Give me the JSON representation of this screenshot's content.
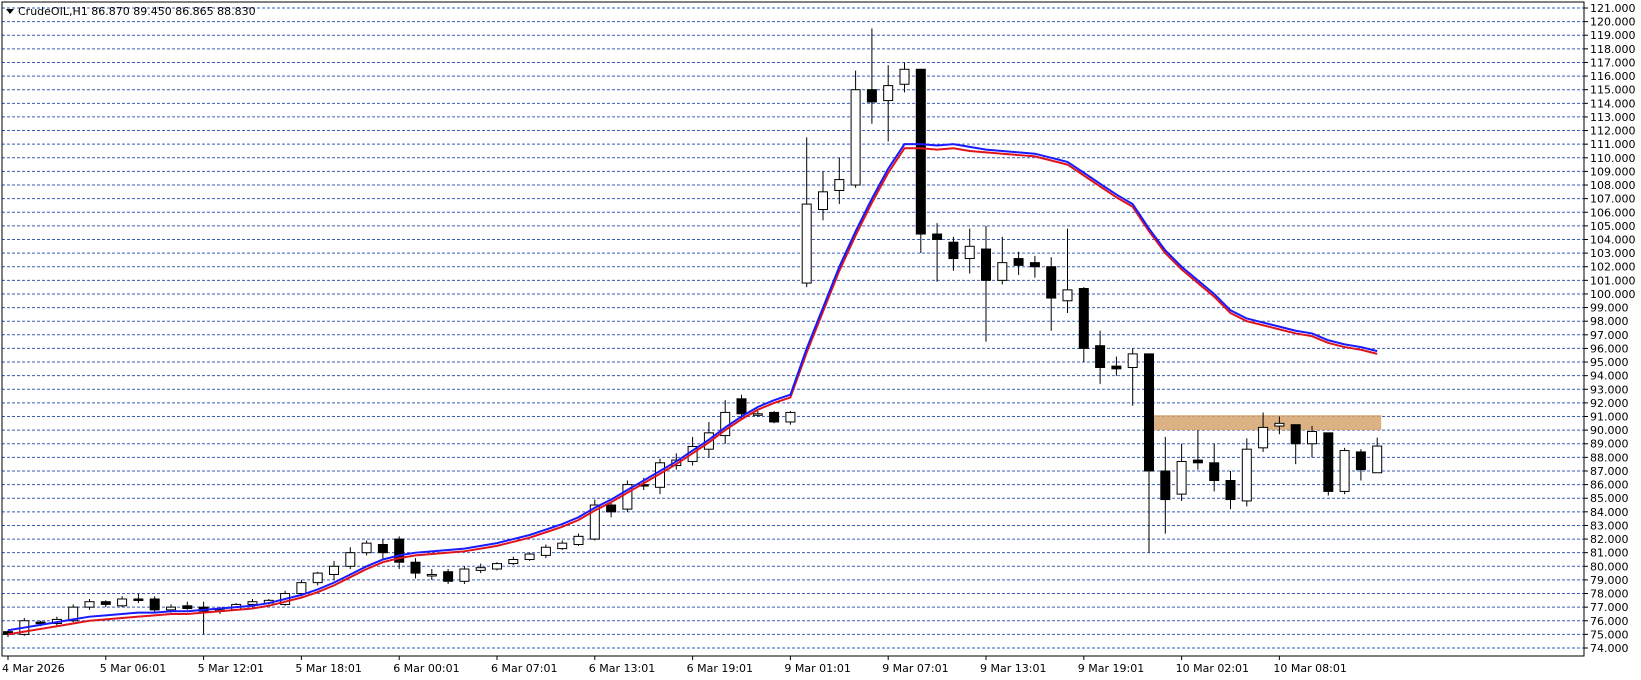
{
  "chart_title": "CrudeOIL,H1  86.870 89.450 86.865 88.830",
  "colors": {
    "background": "#ffffff",
    "grid": "#3a5bb8",
    "bull_fill": "#ffffff",
    "bear_fill": "#000000",
    "ma_fast": "#1a1aff",
    "ma_slow": "#e0141b",
    "zone": "#d6a46e"
  },
  "chart_data": {
    "type": "candlestick",
    "symbol": "CrudeOIL",
    "timeframe": "H1",
    "ohlc_header": {
      "open": 86.87,
      "high": 89.45,
      "low": 86.865,
      "close": 88.83
    },
    "ylim": [
      74,
      121
    ],
    "grid": true,
    "y_ticks": [
      "74.000",
      "75.000",
      "76.000",
      "77.000",
      "78.000",
      "79.000",
      "80.000",
      "81.000",
      "82.000",
      "83.000",
      "84.000",
      "85.000",
      "86.000",
      "87.000",
      "88.000",
      "89.000",
      "90.000",
      "91.000",
      "92.000",
      "93.000",
      "94.000",
      "95.000",
      "96.000",
      "97.000",
      "98.000",
      "99.000",
      "100.000",
      "101.000",
      "102.000",
      "103.000",
      "104.000",
      "105.000",
      "106.000",
      "107.000",
      "108.000",
      "109.000",
      "110.000",
      "111.000",
      "112.000",
      "113.000",
      "114.000",
      "115.000",
      "116.000",
      "117.000",
      "118.000",
      "119.000",
      "120.000",
      "121.000"
    ],
    "x_ticks": [
      {
        "label": "4 Mar 2026",
        "bar": 0
      },
      {
        "label": "5 Mar 06:01",
        "bar": 6
      },
      {
        "label": "5 Mar 12:01",
        "bar": 12
      },
      {
        "label": "5 Mar 18:01",
        "bar": 18
      },
      {
        "label": "6 Mar 00:01",
        "bar": 24
      },
      {
        "label": "6 Mar 07:01",
        "bar": 30
      },
      {
        "label": "6 Mar 13:01",
        "bar": 36
      },
      {
        "label": "6 Mar 19:01",
        "bar": 42
      },
      {
        "label": "9 Mar 01:01",
        "bar": 48
      },
      {
        "label": "9 Mar 07:01",
        "bar": 54
      },
      {
        "label": "9 Mar 13:01",
        "bar": 60
      },
      {
        "label": "9 Mar 19:01",
        "bar": 66
      },
      {
        "label": "10 Mar 02:01",
        "bar": 72
      },
      {
        "label": "10 Mar 08:01",
        "bar": 78
      }
    ],
    "candles": [
      [
        75.2,
        75.0,
        74.8,
        75.3
      ],
      [
        75.0,
        76.0,
        74.9,
        76.2
      ],
      [
        75.9,
        75.8,
        75.6,
        76.0
      ],
      [
        75.8,
        76.1,
        75.6,
        76.3
      ],
      [
        76.0,
        77.0,
        75.9,
        77.2
      ],
      [
        77.0,
        77.4,
        76.8,
        77.6
      ],
      [
        77.4,
        77.2,
        77.0,
        77.5
      ],
      [
        77.1,
        77.6,
        77.0,
        77.8
      ],
      [
        77.6,
        77.5,
        77.3,
        78.0
      ],
      [
        77.6,
        76.8,
        76.6,
        77.8
      ],
      [
        76.8,
        77.0,
        76.6,
        77.2
      ],
      [
        77.1,
        76.9,
        76.8,
        77.4
      ],
      [
        77.0,
        76.7,
        75.0,
        77.4
      ],
      [
        76.7,
        76.8,
        76.5,
        77.0
      ],
      [
        76.8,
        77.2,
        76.8,
        77.3
      ],
      [
        77.2,
        77.4,
        77.0,
        77.6
      ],
      [
        77.3,
        77.5,
        77.2,
        77.6
      ],
      [
        77.2,
        78.0,
        77.1,
        78.2
      ],
      [
        78.0,
        78.8,
        77.8,
        79.0
      ],
      [
        78.8,
        79.5,
        78.6,
        79.6
      ],
      [
        79.4,
        80.0,
        79.0,
        80.4
      ],
      [
        80.0,
        81.0,
        79.8,
        81.4
      ],
      [
        81.0,
        81.7,
        80.8,
        81.9
      ],
      [
        81.6,
        81.0,
        80.5,
        82.0
      ],
      [
        82.0,
        80.3,
        79.8,
        82.2
      ],
      [
        80.3,
        79.5,
        79.1,
        80.6
      ],
      [
        79.4,
        79.4,
        79.0,
        79.8
      ],
      [
        79.6,
        78.9,
        78.7,
        79.8
      ],
      [
        78.9,
        79.8,
        78.7,
        80.0
      ],
      [
        79.7,
        79.9,
        79.5,
        80.2
      ],
      [
        79.8,
        80.2,
        79.7,
        80.3
      ],
      [
        80.2,
        80.5,
        80.1,
        80.7
      ],
      [
        80.5,
        80.9,
        80.4,
        81.0
      ],
      [
        80.8,
        81.4,
        80.6,
        81.6
      ],
      [
        81.3,
        81.7,
        81.2,
        81.9
      ],
      [
        81.6,
        82.2,
        81.5,
        82.4
      ],
      [
        82.0,
        84.5,
        81.9,
        84.9
      ],
      [
        84.5,
        84.0,
        83.6,
        84.7
      ],
      [
        84.2,
        86.0,
        84.0,
        86.3
      ],
      [
        86.0,
        85.9,
        85.6,
        86.5
      ],
      [
        85.8,
        87.6,
        85.3,
        87.9
      ],
      [
        87.4,
        87.8,
        87.1,
        88.3
      ],
      [
        87.7,
        88.8,
        87.4,
        89.5
      ],
      [
        88.6,
        89.8,
        88.0,
        90.6
      ],
      [
        89.6,
        91.3,
        89.0,
        92.2
      ],
      [
        92.3,
        91.2,
        90.8,
        92.6
      ],
      [
        91.2,
        91.2,
        91.0,
        91.4
      ],
      [
        91.3,
        90.6,
        90.5,
        91.4
      ],
      [
        90.6,
        91.3,
        90.4,
        91.4
      ],
      [
        100.8,
        106.6,
        100.5,
        111.5
      ],
      [
        106.2,
        107.5,
        105.4,
        109.0
      ],
      [
        107.6,
        108.4,
        106.6,
        110.0
      ],
      [
        108.0,
        115.0,
        107.8,
        116.4
      ],
      [
        115.0,
        114.1,
        112.5,
        119.5
      ],
      [
        114.2,
        115.3,
        111.2,
        116.8
      ],
      [
        115.4,
        116.5,
        114.8,
        117.0
      ],
      [
        116.5,
        104.4,
        103.0,
        116.5
      ],
      [
        104.4,
        104.0,
        100.9,
        105.2
      ],
      [
        103.8,
        102.6,
        101.7,
        104.2
      ],
      [
        102.6,
        103.5,
        101.5,
        104.8
      ],
      [
        103.3,
        101.0,
        96.5,
        105.0
      ],
      [
        101.0,
        102.3,
        100.7,
        104.2
      ],
      [
        102.6,
        102.1,
        101.4,
        103.1
      ],
      [
        102.3,
        102.0,
        101.2,
        102.8
      ],
      [
        102.0,
        99.7,
        97.3,
        102.7
      ],
      [
        99.5,
        100.3,
        98.6,
        104.8
      ],
      [
        100.4,
        96.0,
        95.0,
        100.5
      ],
      [
        96.2,
        94.6,
        93.4,
        97.3
      ],
      [
        94.7,
        94.5,
        94.0,
        95.4
      ],
      [
        94.6,
        95.6,
        91.8,
        96.0
      ],
      [
        95.6,
        87.0,
        81.0,
        95.6
      ],
      [
        87.0,
        84.9,
        82.4,
        89.5
      ],
      [
        85.3,
        87.7,
        84.8,
        89.0
      ],
      [
        87.8,
        87.6,
        87.1,
        90.0
      ],
      [
        87.6,
        86.3,
        85.5,
        89.0
      ],
      [
        86.3,
        84.9,
        84.2,
        87.0
      ],
      [
        84.8,
        88.6,
        84.4,
        89.4
      ],
      [
        88.7,
        90.2,
        88.4,
        91.3
      ],
      [
        90.3,
        90.5,
        89.7,
        91.0
      ],
      [
        90.4,
        89.0,
        87.5,
        90.4
      ],
      [
        89.0,
        89.9,
        88.0,
        90.3
      ],
      [
        89.8,
        85.5,
        85.2,
        89.8
      ],
      [
        85.5,
        88.5,
        85.3,
        88.7
      ],
      [
        88.4,
        87.1,
        86.3,
        88.6
      ],
      [
        86.87,
        88.83,
        86.865,
        89.45
      ]
    ],
    "ma_fast": [
      75.3,
      75.5,
      75.7,
      75.9,
      76.1,
      76.3,
      76.4,
      76.5,
      76.6,
      76.6,
      76.7,
      76.7,
      76.8,
      76.9,
      77.0,
      77.1,
      77.3,
      77.6,
      77.9,
      78.3,
      78.8,
      79.4,
      80.0,
      80.5,
      80.8,
      81.0,
      81.1,
      81.2,
      81.3,
      81.5,
      81.7,
      82.0,
      82.3,
      82.7,
      83.1,
      83.6,
      84.3,
      84.9,
      85.6,
      86.3,
      87.0,
      87.7,
      88.5,
      89.3,
      90.2,
      91.0,
      91.7,
      92.2,
      92.6,
      96.0,
      99.0,
      102.0,
      104.6,
      107.0,
      109.2,
      111.0,
      111.0,
      110.9,
      111.0,
      110.8,
      110.6,
      110.5,
      110.4,
      110.3,
      110.0,
      109.7,
      108.9,
      108.1,
      107.3,
      106.6,
      104.8,
      103.2,
      102.0,
      101.0,
      100.0,
      98.8,
      98.2,
      97.9,
      97.6,
      97.3,
      97.1,
      96.6,
      96.3,
      96.1,
      95.8
    ],
    "ma_slow": [
      75.0,
      75.2,
      75.4,
      75.6,
      75.8,
      76.0,
      76.1,
      76.2,
      76.3,
      76.4,
      76.5,
      76.5,
      76.6,
      76.7,
      76.8,
      76.9,
      77.1,
      77.4,
      77.7,
      78.1,
      78.6,
      79.2,
      79.8,
      80.3,
      80.6,
      80.8,
      80.9,
      81.0,
      81.1,
      81.3,
      81.5,
      81.8,
      82.1,
      82.5,
      82.9,
      83.4,
      84.1,
      84.7,
      85.4,
      86.1,
      86.8,
      87.5,
      88.3,
      89.1,
      90.0,
      90.8,
      91.5,
      92.0,
      92.4,
      95.7,
      98.7,
      101.7,
      104.3,
      106.7,
      108.9,
      110.7,
      110.7,
      110.6,
      110.7,
      110.5,
      110.4,
      110.3,
      110.2,
      110.1,
      109.8,
      109.5,
      108.7,
      107.9,
      107.1,
      106.4,
      104.6,
      103.0,
      101.8,
      100.8,
      99.8,
      98.6,
      98.0,
      97.7,
      97.4,
      97.1,
      96.9,
      96.4,
      96.1,
      95.9,
      95.6
    ],
    "zone": {
      "from_bar": 70,
      "to_bar": 84,
      "low": 90.0,
      "high": 91.1
    }
  }
}
